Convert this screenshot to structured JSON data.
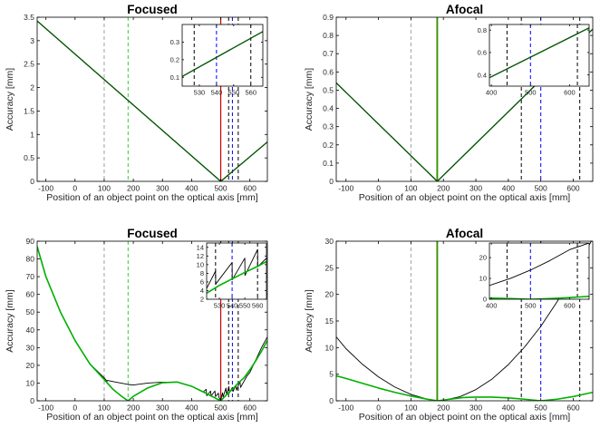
{
  "figure": {
    "xlabel_text": "Position of an object point on the optical axis [mm]",
    "ylabel_text": "Accuracy [mm]"
  },
  "colors": {
    "black": "#000000",
    "green": "#00b000",
    "dark_green": "#005500",
    "red": "#cc0000",
    "blue": "#0000ff",
    "gray": "#a0a0a0",
    "light_green": "#33cc33",
    "olive": "#8a6a00"
  },
  "chart_data": [
    {
      "id": "top-left",
      "type": "line",
      "title": "Focused",
      "xlabel": "Position of an object point on the optical axis [mm]",
      "ylabel": "Accuracy [mm]",
      "xlim": [
        -130,
        660
      ],
      "ylim": [
        0,
        3.5
      ],
      "xticks": [
        -100,
        0,
        100,
        200,
        300,
        400,
        500,
        600
      ],
      "yticks": [
        0,
        0.5,
        1,
        1.5,
        2,
        2.5,
        3,
        3.5
      ],
      "ytick_labels": [
        "0",
        "0.5",
        "1",
        "1.5",
        "2",
        "2.5",
        "3",
        "3.5"
      ],
      "vlines": [
        {
          "x": 100,
          "color": "gray",
          "dash": true
        },
        {
          "x": 182,
          "color": "light_green",
          "dash": true
        },
        {
          "x": 500,
          "color": "red",
          "dash": false
        },
        {
          "x": 527,
          "color": "black",
          "dash": true
        },
        {
          "x": 540,
          "color": "blue",
          "dash": true
        },
        {
          "x": 560,
          "color": "black",
          "dash": true
        }
      ],
      "series": [
        {
          "color": "black",
          "width": 1.0,
          "x": [
            -130,
            500,
            660
          ],
          "y": [
            3.42,
            0,
            0.84
          ]
        },
        {
          "color": "dark_green",
          "width": 1.3,
          "x": [
            -130,
            500,
            660
          ],
          "y": [
            3.42,
            0,
            0.84
          ]
        }
      ],
      "inset": {
        "xlim": [
          520,
          567
        ],
        "ylim": [
          0.05,
          0.4
        ],
        "xticks": [
          530,
          540,
          550,
          560
        ],
        "yticks": [
          0.1,
          0.2,
          0.3
        ],
        "ytick_labels": [
          "0.1",
          "0.2",
          "0.3"
        ],
        "vlines": [
          {
            "x": 527,
            "color": "black",
            "dash": true
          },
          {
            "x": 540,
            "color": "blue",
            "dash": true
          },
          {
            "x": 560,
            "color": "black",
            "dash": true
          }
        ],
        "series": [
          {
            "color": "black",
            "width": 1.0,
            "x": [
              520,
              567
            ],
            "y": [
              0.105,
              0.36
            ]
          },
          {
            "color": "dark_green",
            "width": 1.3,
            "x": [
              520,
              567
            ],
            "y": [
              0.105,
              0.36
            ]
          }
        ]
      }
    },
    {
      "id": "top-right",
      "type": "line",
      "title": "Afocal",
      "xlabel": "Position of an object point on the optical axis [mm]",
      "ylabel": "Accuracy [mm]",
      "xlim": [
        -130,
        660
      ],
      "ylim": [
        0,
        0.9
      ],
      "xticks": [
        -100,
        0,
        100,
        200,
        300,
        400,
        500,
        600
      ],
      "yticks": [
        0,
        0.1,
        0.2,
        0.3,
        0.4,
        0.5,
        0.6,
        0.7,
        0.8,
        0.9
      ],
      "ytick_labels": [
        "0",
        "0.1",
        "0.2",
        "0.3",
        "0.4",
        "0.5",
        "0.6",
        "0.7",
        "0.8",
        "0.9"
      ],
      "vlines": [
        {
          "x": 100,
          "color": "gray",
          "dash": true
        },
        {
          "x": 180,
          "color": "olive",
          "dash": false
        },
        {
          "x": 182,
          "color": "green",
          "dash": false
        },
        {
          "x": 440,
          "color": "black",
          "dash": true
        },
        {
          "x": 500,
          "color": "blue",
          "dash": true
        },
        {
          "x": 620,
          "color": "black",
          "dash": true
        }
      ],
      "series": [
        {
          "color": "black",
          "width": 1.0,
          "x": [
            -130,
            181,
            660
          ],
          "y": [
            0.54,
            0,
            0.835
          ]
        },
        {
          "color": "dark_green",
          "width": 1.3,
          "x": [
            -130,
            181,
            660
          ],
          "y": [
            0.54,
            0,
            0.835
          ]
        }
      ],
      "inset": {
        "xlim": [
          395,
          650
        ],
        "ylim": [
          0.3,
          0.85
        ],
        "xticks": [
          400,
          500,
          600
        ],
        "yticks": [
          0.4,
          0.6,
          0.8
        ],
        "ytick_labels": [
          "0.4",
          "0.6",
          "0.8"
        ],
        "vlines": [
          {
            "x": 440,
            "color": "black",
            "dash": true
          },
          {
            "x": 500,
            "color": "blue",
            "dash": true
          },
          {
            "x": 620,
            "color": "black",
            "dash": true
          }
        ],
        "series": [
          {
            "color": "black",
            "width": 1.0,
            "x": [
              395,
              650
            ],
            "y": [
              0.375,
              0.82
            ]
          },
          {
            "color": "dark_green",
            "width": 1.3,
            "x": [
              395,
              650
            ],
            "y": [
              0.375,
              0.82
            ]
          }
        ]
      }
    },
    {
      "id": "bottom-left",
      "type": "line",
      "title": "Focused",
      "xlabel": "Position of an object point on the optical axis [mm]",
      "ylabel": "Accuracy [mm]",
      "xlim": [
        -130,
        660
      ],
      "ylim": [
        0,
        90
      ],
      "xticks": [
        -100,
        0,
        100,
        200,
        300,
        400,
        500,
        600
      ],
      "yticks": [
        0,
        10,
        20,
        30,
        40,
        50,
        60,
        70,
        80,
        90
      ],
      "ytick_labels": [
        "0",
        "10",
        "20",
        "30",
        "40",
        "50",
        "60",
        "70",
        "80",
        "90"
      ],
      "vlines": [
        {
          "x": 100,
          "color": "gray",
          "dash": true
        },
        {
          "x": 182,
          "color": "light_green",
          "dash": true
        },
        {
          "x": 500,
          "color": "red",
          "dash": false
        },
        {
          "x": 527,
          "color": "black",
          "dash": true
        },
        {
          "x": 540,
          "color": "blue",
          "dash": true
        },
        {
          "x": 560,
          "color": "black",
          "dash": true
        }
      ],
      "series": [
        {
          "color": "black",
          "width": 0.9,
          "x": [
            -130,
            -100,
            -50,
            0,
            50,
            100,
            110,
            112,
            140,
            170,
            182,
            200,
            250,
            300,
            350,
            400,
            440,
            450,
            452,
            465,
            467,
            480,
            482,
            492,
            494,
            500,
            506,
            508,
            518,
            520,
            528,
            530,
            540,
            542,
            552,
            554,
            566,
            568,
            590,
            600,
            620,
            640,
            660
          ],
          "y": [
            87,
            70,
            50,
            34,
            21,
            13,
            11,
            11.5,
            10.5,
            9.6,
            9.2,
            8.9,
            10,
            10.5,
            10.5,
            8.2,
            5,
            6.5,
            2.8,
            5.5,
            2.8,
            5.5,
            2.4,
            4.3,
            1.8,
            0.3,
            4.5,
            2.2,
            7.2,
            3.5,
            8,
            4.5,
            7.5,
            5.2,
            8.8,
            6,
            11,
            7.5,
            14,
            16,
            23,
            30,
            36
          ]
        },
        {
          "color": "green",
          "width": 1.6,
          "x": [
            -130,
            -100,
            -50,
            0,
            50,
            100,
            130,
            160,
            182,
            200,
            250,
            300,
            350,
            400,
            440,
            470,
            490,
            500,
            520,
            540,
            560,
            580,
            600,
            620,
            640,
            660
          ],
          "y": [
            87,
            70,
            50,
            34,
            21,
            12,
            6.5,
            2.5,
            0,
            2.5,
            7.3,
            10.2,
            10.6,
            8.2,
            5,
            2.5,
            0.8,
            0,
            3.5,
            6.5,
            10,
            13,
            17.5,
            22.5,
            28,
            34
          ]
        }
      ],
      "inset": {
        "xlim": [
          520,
          567
        ],
        "ylim": [
          2,
          15
        ],
        "xticks": [
          530,
          540,
          550,
          560
        ],
        "yticks": [
          2,
          4,
          6,
          8,
          10,
          12,
          14
        ],
        "ytick_labels": [
          "2",
          "4",
          "6",
          "8",
          "10",
          "12",
          "14"
        ],
        "vlines": [
          {
            "x": 527,
            "color": "black",
            "dash": true
          },
          {
            "x": 540,
            "color": "blue",
            "dash": true
          },
          {
            "x": 560,
            "color": "black",
            "dash": true
          }
        ],
        "series": [
          {
            "color": "black",
            "width": 0.9,
            "x": [
              520,
              527,
              527.1,
              540,
              540.1,
              550,
              550.1,
              560,
              560.1,
              567
            ],
            "y": [
              4.5,
              8.5,
              5.5,
              10.5,
              6.5,
              11.5,
              7.5,
              13.5,
              9.5,
              11.5
            ]
          },
          {
            "color": "green",
            "width": 1.6,
            "x": [
              520,
              530,
              540,
              550,
              560,
              567
            ],
            "y": [
              3.4,
              5.2,
              6.7,
              8.2,
              9.6,
              10.7
            ]
          }
        ]
      }
    },
    {
      "id": "bottom-right",
      "type": "line",
      "title": "Afocal",
      "xlabel": "Position of an object point on the optical axis [mm]",
      "ylabel": "Accuracy [mm]",
      "xlim": [
        -130,
        660
      ],
      "ylim": [
        0,
        30
      ],
      "xticks": [
        -100,
        0,
        100,
        200,
        300,
        400,
        500,
        600
      ],
      "yticks": [
        0,
        5,
        10,
        15,
        20,
        25,
        30
      ],
      "ytick_labels": [
        "0",
        "5",
        "10",
        "15",
        "20",
        "25",
        "30"
      ],
      "vlines": [
        {
          "x": 100,
          "color": "gray",
          "dash": true
        },
        {
          "x": 180,
          "color": "olive",
          "dash": false
        },
        {
          "x": 182,
          "color": "green",
          "dash": false
        },
        {
          "x": 440,
          "color": "black",
          "dash": true
        },
        {
          "x": 500,
          "color": "blue",
          "dash": true
        },
        {
          "x": 620,
          "color": "black",
          "dash": true
        }
      ],
      "series": [
        {
          "color": "black",
          "width": 0.9,
          "x": [
            -130,
            -100,
            -50,
            0,
            50,
            100,
            150,
            182,
            200,
            250,
            300,
            350,
            400,
            450,
            500,
            550,
            600,
            660
          ],
          "y": [
            12,
            9.8,
            6.9,
            4.5,
            2.6,
            1.2,
            0.32,
            0,
            0.1,
            0.75,
            2.1,
            4.1,
            6.8,
            10.1,
            14,
            18.6,
            23.8,
            30.5
          ]
        },
        {
          "color": "green",
          "width": 1.6,
          "x": [
            -130,
            -100,
            -50,
            0,
            50,
            100,
            150,
            182,
            220,
            260,
            300,
            350,
            400,
            450,
            500,
            550,
            600,
            660
          ],
          "y": [
            4.7,
            4.2,
            3.3,
            2.4,
            1.6,
            0.9,
            0.3,
            0,
            0.3,
            0.6,
            0.7,
            0.7,
            0.55,
            0.3,
            0,
            0.3,
            0.8,
            1.6
          ]
        }
      ],
      "inset": {
        "xlim": [
          395,
          650
        ],
        "ylim": [
          0,
          27
        ],
        "xticks": [
          400,
          500,
          600
        ],
        "yticks": [
          0,
          10,
          20
        ],
        "ytick_labels": [
          "0",
          "10",
          "20"
        ],
        "vlines": [
          {
            "x": 440,
            "color": "black",
            "dash": true
          },
          {
            "x": 500,
            "color": "blue",
            "dash": true
          },
          {
            "x": 620,
            "color": "black",
            "dash": true
          }
        ],
        "series": [
          {
            "color": "black",
            "width": 0.9,
            "x": [
              395,
              450,
              500,
              550,
              600,
              650
            ],
            "y": [
              6.6,
              10.1,
              14,
              18.6,
              23.8,
              27
            ]
          },
          {
            "color": "green",
            "width": 1.6,
            "x": [
              395,
              450,
              500,
              550,
              600,
              650
            ],
            "y": [
              0.6,
              0.3,
              0,
              0.3,
              0.8,
              1.4
            ]
          }
        ]
      }
    }
  ]
}
